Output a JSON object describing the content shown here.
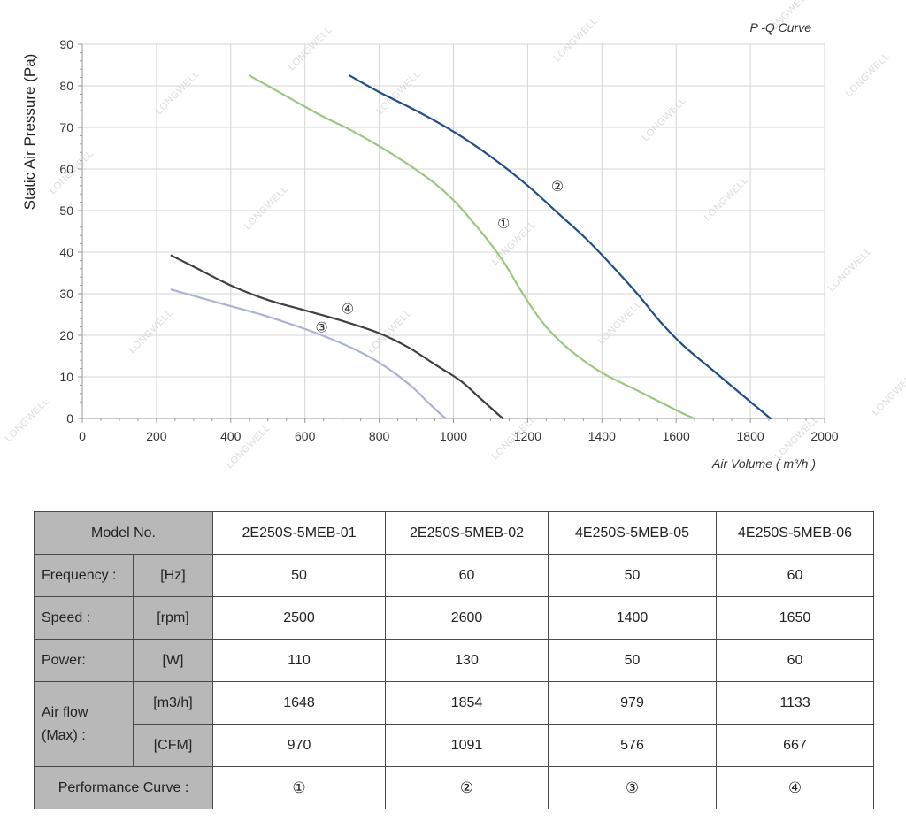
{
  "chart_data": {
    "type": "line",
    "title": "P -Q Curve",
    "xlabel": "Air Volume ( m³/h )",
    "ylabel": "Static Air Pressure  (Pa)",
    "xlim": [
      0,
      2000
    ],
    "ylim": [
      0,
      90
    ],
    "xticks": [
      "0",
      "200",
      "400",
      "600",
      "800",
      "1000",
      "1200",
      "1400",
      "1600",
      "1800",
      "2000"
    ],
    "yticks": [
      "0",
      "10",
      "20",
      "30",
      "40",
      "50",
      "60",
      "70",
      "80",
      "90"
    ],
    "grid": true,
    "series": [
      {
        "name": "①",
        "color": "#9cc77e",
        "points": [
          [
            450,
            82.5
          ],
          [
            540,
            78
          ],
          [
            640,
            73
          ],
          [
            720,
            69.5
          ],
          [
            800,
            65.5
          ],
          [
            880,
            61
          ],
          [
            950,
            56.5
          ],
          [
            1000,
            52.5
          ],
          [
            1050,
            47.5
          ],
          [
            1100,
            42
          ],
          [
            1140,
            37
          ],
          [
            1180,
            31
          ],
          [
            1220,
            25.5
          ],
          [
            1260,
            21
          ],
          [
            1320,
            16
          ],
          [
            1400,
            11
          ],
          [
            1500,
            6.5
          ],
          [
            1600,
            2
          ],
          [
            1648,
            0
          ]
        ]
      },
      {
        "name": "②",
        "color": "#1f4e8c",
        "points": [
          [
            720,
            82.5
          ],
          [
            800,
            78.5
          ],
          [
            900,
            74
          ],
          [
            1000,
            69
          ],
          [
            1100,
            63
          ],
          [
            1200,
            56
          ],
          [
            1280,
            49.5
          ],
          [
            1360,
            43
          ],
          [
            1440,
            35.5
          ],
          [
            1500,
            29.5
          ],
          [
            1560,
            23
          ],
          [
            1620,
            17.5
          ],
          [
            1700,
            11.5
          ],
          [
            1780,
            5.5
          ],
          [
            1854,
            0
          ]
        ]
      },
      {
        "name": "③",
        "color": "#aab4d2",
        "points": [
          [
            240,
            31
          ],
          [
            300,
            29.5
          ],
          [
            400,
            27
          ],
          [
            500,
            24.5
          ],
          [
            600,
            21.5
          ],
          [
            700,
            18
          ],
          [
            780,
            14.5
          ],
          [
            840,
            11
          ],
          [
            890,
            7.5
          ],
          [
            930,
            4
          ],
          [
            960,
            1.5
          ],
          [
            979,
            0
          ]
        ]
      },
      {
        "name": "④",
        "color": "#404040",
        "points": [
          [
            240,
            39.2
          ],
          [
            300,
            36.5
          ],
          [
            400,
            32
          ],
          [
            500,
            28.5
          ],
          [
            600,
            26
          ],
          [
            700,
            23.5
          ],
          [
            800,
            20.5
          ],
          [
            880,
            17
          ],
          [
            950,
            13
          ],
          [
            1020,
            9
          ],
          [
            1070,
            5
          ],
          [
            1110,
            1.8
          ],
          [
            1133,
            0
          ]
        ]
      }
    ],
    "annotations": [
      {
        "text": "①",
        "x": 1135,
        "y": 47
      },
      {
        "text": "②",
        "x": 1280,
        "y": 56
      },
      {
        "text": "③",
        "x": 645,
        "y": 22
      },
      {
        "text": "④",
        "x": 715,
        "y": 26.5
      }
    ]
  },
  "watermark": "LONGWELL",
  "table": {
    "model_label": "Model No.",
    "models": [
      "2E250S-5MEB-01",
      "2E250S-5MEB-02",
      "4E250S-5MEB-05",
      "4E250S-5MEB-06"
    ],
    "rows": [
      {
        "label": "Frequency :",
        "unit": "[Hz]",
        "values": [
          "50",
          "60",
          "50",
          "60"
        ]
      },
      {
        "label": "Speed :",
        "unit": "[rpm]",
        "values": [
          "2500",
          "2600",
          "1400",
          "1650"
        ]
      },
      {
        "label": "Power:",
        "unit": "[W]",
        "values": [
          "110",
          "130",
          "50",
          "60"
        ]
      }
    ],
    "airflow_label_1": "Air flow",
    "airflow_label_2": "(Max) :",
    "airflow_rows": [
      {
        "unit": "[m3/h]",
        "values": [
          "1648",
          "1854",
          "979",
          "1133"
        ]
      },
      {
        "unit": "[CFM]",
        "values": [
          "970",
          "1091",
          "576",
          "667"
        ]
      }
    ],
    "curve_label": "Performance Curve :",
    "curve_values": [
      "①",
      "②",
      "③",
      "④"
    ]
  }
}
